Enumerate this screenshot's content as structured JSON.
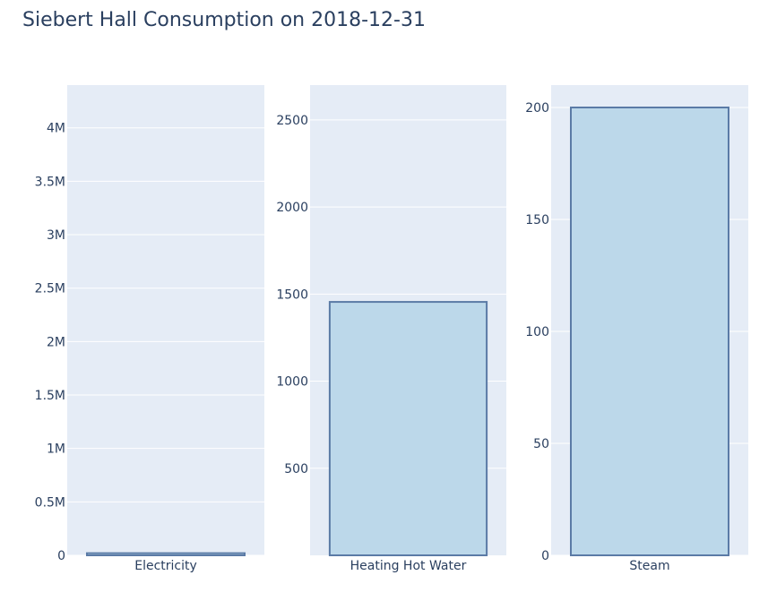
{
  "chart_data": {
    "type": "bar",
    "title": "Siebert Hall Consumption on 2018-12-31",
    "grid": true,
    "colors": {
      "bar_fill": "#bcd8ea",
      "bar_stroke": "#5b7ba6",
      "plot_bg": "#e5ecf6",
      "grid": "#ffffff",
      "text": "#2a3f5f"
    },
    "panels": [
      {
        "category": "Electricity",
        "value": 20000,
        "ylim": [
          0,
          4400000
        ],
        "yticks": [
          0,
          500000,
          1000000,
          1500000,
          2000000,
          2500000,
          3000000,
          3500000,
          4000000
        ],
        "ytick_labels": [
          "0",
          "0.5M",
          "1M",
          "1.5M",
          "2M",
          "2.5M",
          "3M",
          "3.5M",
          "4M"
        ]
      },
      {
        "category": "Heating Hot Water",
        "value": 1455,
        "ylim": [
          0,
          2700
        ],
        "yticks": [
          500,
          1000,
          1500,
          2000,
          2500
        ],
        "ytick_labels": [
          "500",
          "1000",
          "1500",
          "2000",
          "2500"
        ]
      },
      {
        "category": "Steam",
        "value": 200,
        "ylim": [
          0,
          210
        ],
        "yticks": [
          0,
          50,
          100,
          150,
          200
        ],
        "ytick_labels": [
          "0",
          "50",
          "100",
          "150",
          "200"
        ]
      }
    ]
  }
}
